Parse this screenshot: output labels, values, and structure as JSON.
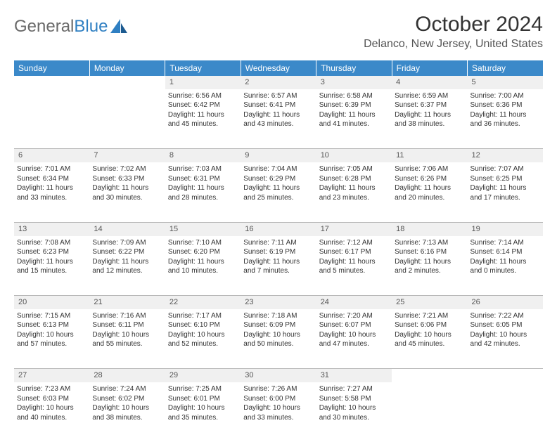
{
  "logo": {
    "text1": "General",
    "text2": "Blue"
  },
  "title": {
    "month": "October 2024",
    "location": "Delanco, New Jersey, United States"
  },
  "colors": {
    "header_bg": "#3b89c9",
    "daynum_bg": "#f0f0f0",
    "rule": "#b8b8b8",
    "logo_blue": "#2f7fc2"
  },
  "daynames": [
    "Sunday",
    "Monday",
    "Tuesday",
    "Wednesday",
    "Thursday",
    "Friday",
    "Saturday"
  ],
  "weeks": [
    {
      "nums": [
        "",
        "",
        "1",
        "2",
        "3",
        "4",
        "5"
      ],
      "cells": [
        null,
        null,
        {
          "sunrise": "Sunrise: 6:56 AM",
          "sunset": "Sunset: 6:42 PM",
          "d1": "Daylight: 11 hours",
          "d2": "and 45 minutes."
        },
        {
          "sunrise": "Sunrise: 6:57 AM",
          "sunset": "Sunset: 6:41 PM",
          "d1": "Daylight: 11 hours",
          "d2": "and 43 minutes."
        },
        {
          "sunrise": "Sunrise: 6:58 AM",
          "sunset": "Sunset: 6:39 PM",
          "d1": "Daylight: 11 hours",
          "d2": "and 41 minutes."
        },
        {
          "sunrise": "Sunrise: 6:59 AM",
          "sunset": "Sunset: 6:37 PM",
          "d1": "Daylight: 11 hours",
          "d2": "and 38 minutes."
        },
        {
          "sunrise": "Sunrise: 7:00 AM",
          "sunset": "Sunset: 6:36 PM",
          "d1": "Daylight: 11 hours",
          "d2": "and 36 minutes."
        }
      ]
    },
    {
      "nums": [
        "6",
        "7",
        "8",
        "9",
        "10",
        "11",
        "12"
      ],
      "cells": [
        {
          "sunrise": "Sunrise: 7:01 AM",
          "sunset": "Sunset: 6:34 PM",
          "d1": "Daylight: 11 hours",
          "d2": "and 33 minutes."
        },
        {
          "sunrise": "Sunrise: 7:02 AM",
          "sunset": "Sunset: 6:33 PM",
          "d1": "Daylight: 11 hours",
          "d2": "and 30 minutes."
        },
        {
          "sunrise": "Sunrise: 7:03 AM",
          "sunset": "Sunset: 6:31 PM",
          "d1": "Daylight: 11 hours",
          "d2": "and 28 minutes."
        },
        {
          "sunrise": "Sunrise: 7:04 AM",
          "sunset": "Sunset: 6:29 PM",
          "d1": "Daylight: 11 hours",
          "d2": "and 25 minutes."
        },
        {
          "sunrise": "Sunrise: 7:05 AM",
          "sunset": "Sunset: 6:28 PM",
          "d1": "Daylight: 11 hours",
          "d2": "and 23 minutes."
        },
        {
          "sunrise": "Sunrise: 7:06 AM",
          "sunset": "Sunset: 6:26 PM",
          "d1": "Daylight: 11 hours",
          "d2": "and 20 minutes."
        },
        {
          "sunrise": "Sunrise: 7:07 AM",
          "sunset": "Sunset: 6:25 PM",
          "d1": "Daylight: 11 hours",
          "d2": "and 17 minutes."
        }
      ]
    },
    {
      "nums": [
        "13",
        "14",
        "15",
        "16",
        "17",
        "18",
        "19"
      ],
      "cells": [
        {
          "sunrise": "Sunrise: 7:08 AM",
          "sunset": "Sunset: 6:23 PM",
          "d1": "Daylight: 11 hours",
          "d2": "and 15 minutes."
        },
        {
          "sunrise": "Sunrise: 7:09 AM",
          "sunset": "Sunset: 6:22 PM",
          "d1": "Daylight: 11 hours",
          "d2": "and 12 minutes."
        },
        {
          "sunrise": "Sunrise: 7:10 AM",
          "sunset": "Sunset: 6:20 PM",
          "d1": "Daylight: 11 hours",
          "d2": "and 10 minutes."
        },
        {
          "sunrise": "Sunrise: 7:11 AM",
          "sunset": "Sunset: 6:19 PM",
          "d1": "Daylight: 11 hours",
          "d2": "and 7 minutes."
        },
        {
          "sunrise": "Sunrise: 7:12 AM",
          "sunset": "Sunset: 6:17 PM",
          "d1": "Daylight: 11 hours",
          "d2": "and 5 minutes."
        },
        {
          "sunrise": "Sunrise: 7:13 AM",
          "sunset": "Sunset: 6:16 PM",
          "d1": "Daylight: 11 hours",
          "d2": "and 2 minutes."
        },
        {
          "sunrise": "Sunrise: 7:14 AM",
          "sunset": "Sunset: 6:14 PM",
          "d1": "Daylight: 11 hours",
          "d2": "and 0 minutes."
        }
      ]
    },
    {
      "nums": [
        "20",
        "21",
        "22",
        "23",
        "24",
        "25",
        "26"
      ],
      "cells": [
        {
          "sunrise": "Sunrise: 7:15 AM",
          "sunset": "Sunset: 6:13 PM",
          "d1": "Daylight: 10 hours",
          "d2": "and 57 minutes."
        },
        {
          "sunrise": "Sunrise: 7:16 AM",
          "sunset": "Sunset: 6:11 PM",
          "d1": "Daylight: 10 hours",
          "d2": "and 55 minutes."
        },
        {
          "sunrise": "Sunrise: 7:17 AM",
          "sunset": "Sunset: 6:10 PM",
          "d1": "Daylight: 10 hours",
          "d2": "and 52 minutes."
        },
        {
          "sunrise": "Sunrise: 7:18 AM",
          "sunset": "Sunset: 6:09 PM",
          "d1": "Daylight: 10 hours",
          "d2": "and 50 minutes."
        },
        {
          "sunrise": "Sunrise: 7:20 AM",
          "sunset": "Sunset: 6:07 PM",
          "d1": "Daylight: 10 hours",
          "d2": "and 47 minutes."
        },
        {
          "sunrise": "Sunrise: 7:21 AM",
          "sunset": "Sunset: 6:06 PM",
          "d1": "Daylight: 10 hours",
          "d2": "and 45 minutes."
        },
        {
          "sunrise": "Sunrise: 7:22 AM",
          "sunset": "Sunset: 6:05 PM",
          "d1": "Daylight: 10 hours",
          "d2": "and 42 minutes."
        }
      ]
    },
    {
      "nums": [
        "27",
        "28",
        "29",
        "30",
        "31",
        "",
        ""
      ],
      "cells": [
        {
          "sunrise": "Sunrise: 7:23 AM",
          "sunset": "Sunset: 6:03 PM",
          "d1": "Daylight: 10 hours",
          "d2": "and 40 minutes."
        },
        {
          "sunrise": "Sunrise: 7:24 AM",
          "sunset": "Sunset: 6:02 PM",
          "d1": "Daylight: 10 hours",
          "d2": "and 38 minutes."
        },
        {
          "sunrise": "Sunrise: 7:25 AM",
          "sunset": "Sunset: 6:01 PM",
          "d1": "Daylight: 10 hours",
          "d2": "and 35 minutes."
        },
        {
          "sunrise": "Sunrise: 7:26 AM",
          "sunset": "Sunset: 6:00 PM",
          "d1": "Daylight: 10 hours",
          "d2": "and 33 minutes."
        },
        {
          "sunrise": "Sunrise: 7:27 AM",
          "sunset": "Sunset: 5:58 PM",
          "d1": "Daylight: 10 hours",
          "d2": "and 30 minutes."
        },
        null,
        null
      ]
    }
  ]
}
